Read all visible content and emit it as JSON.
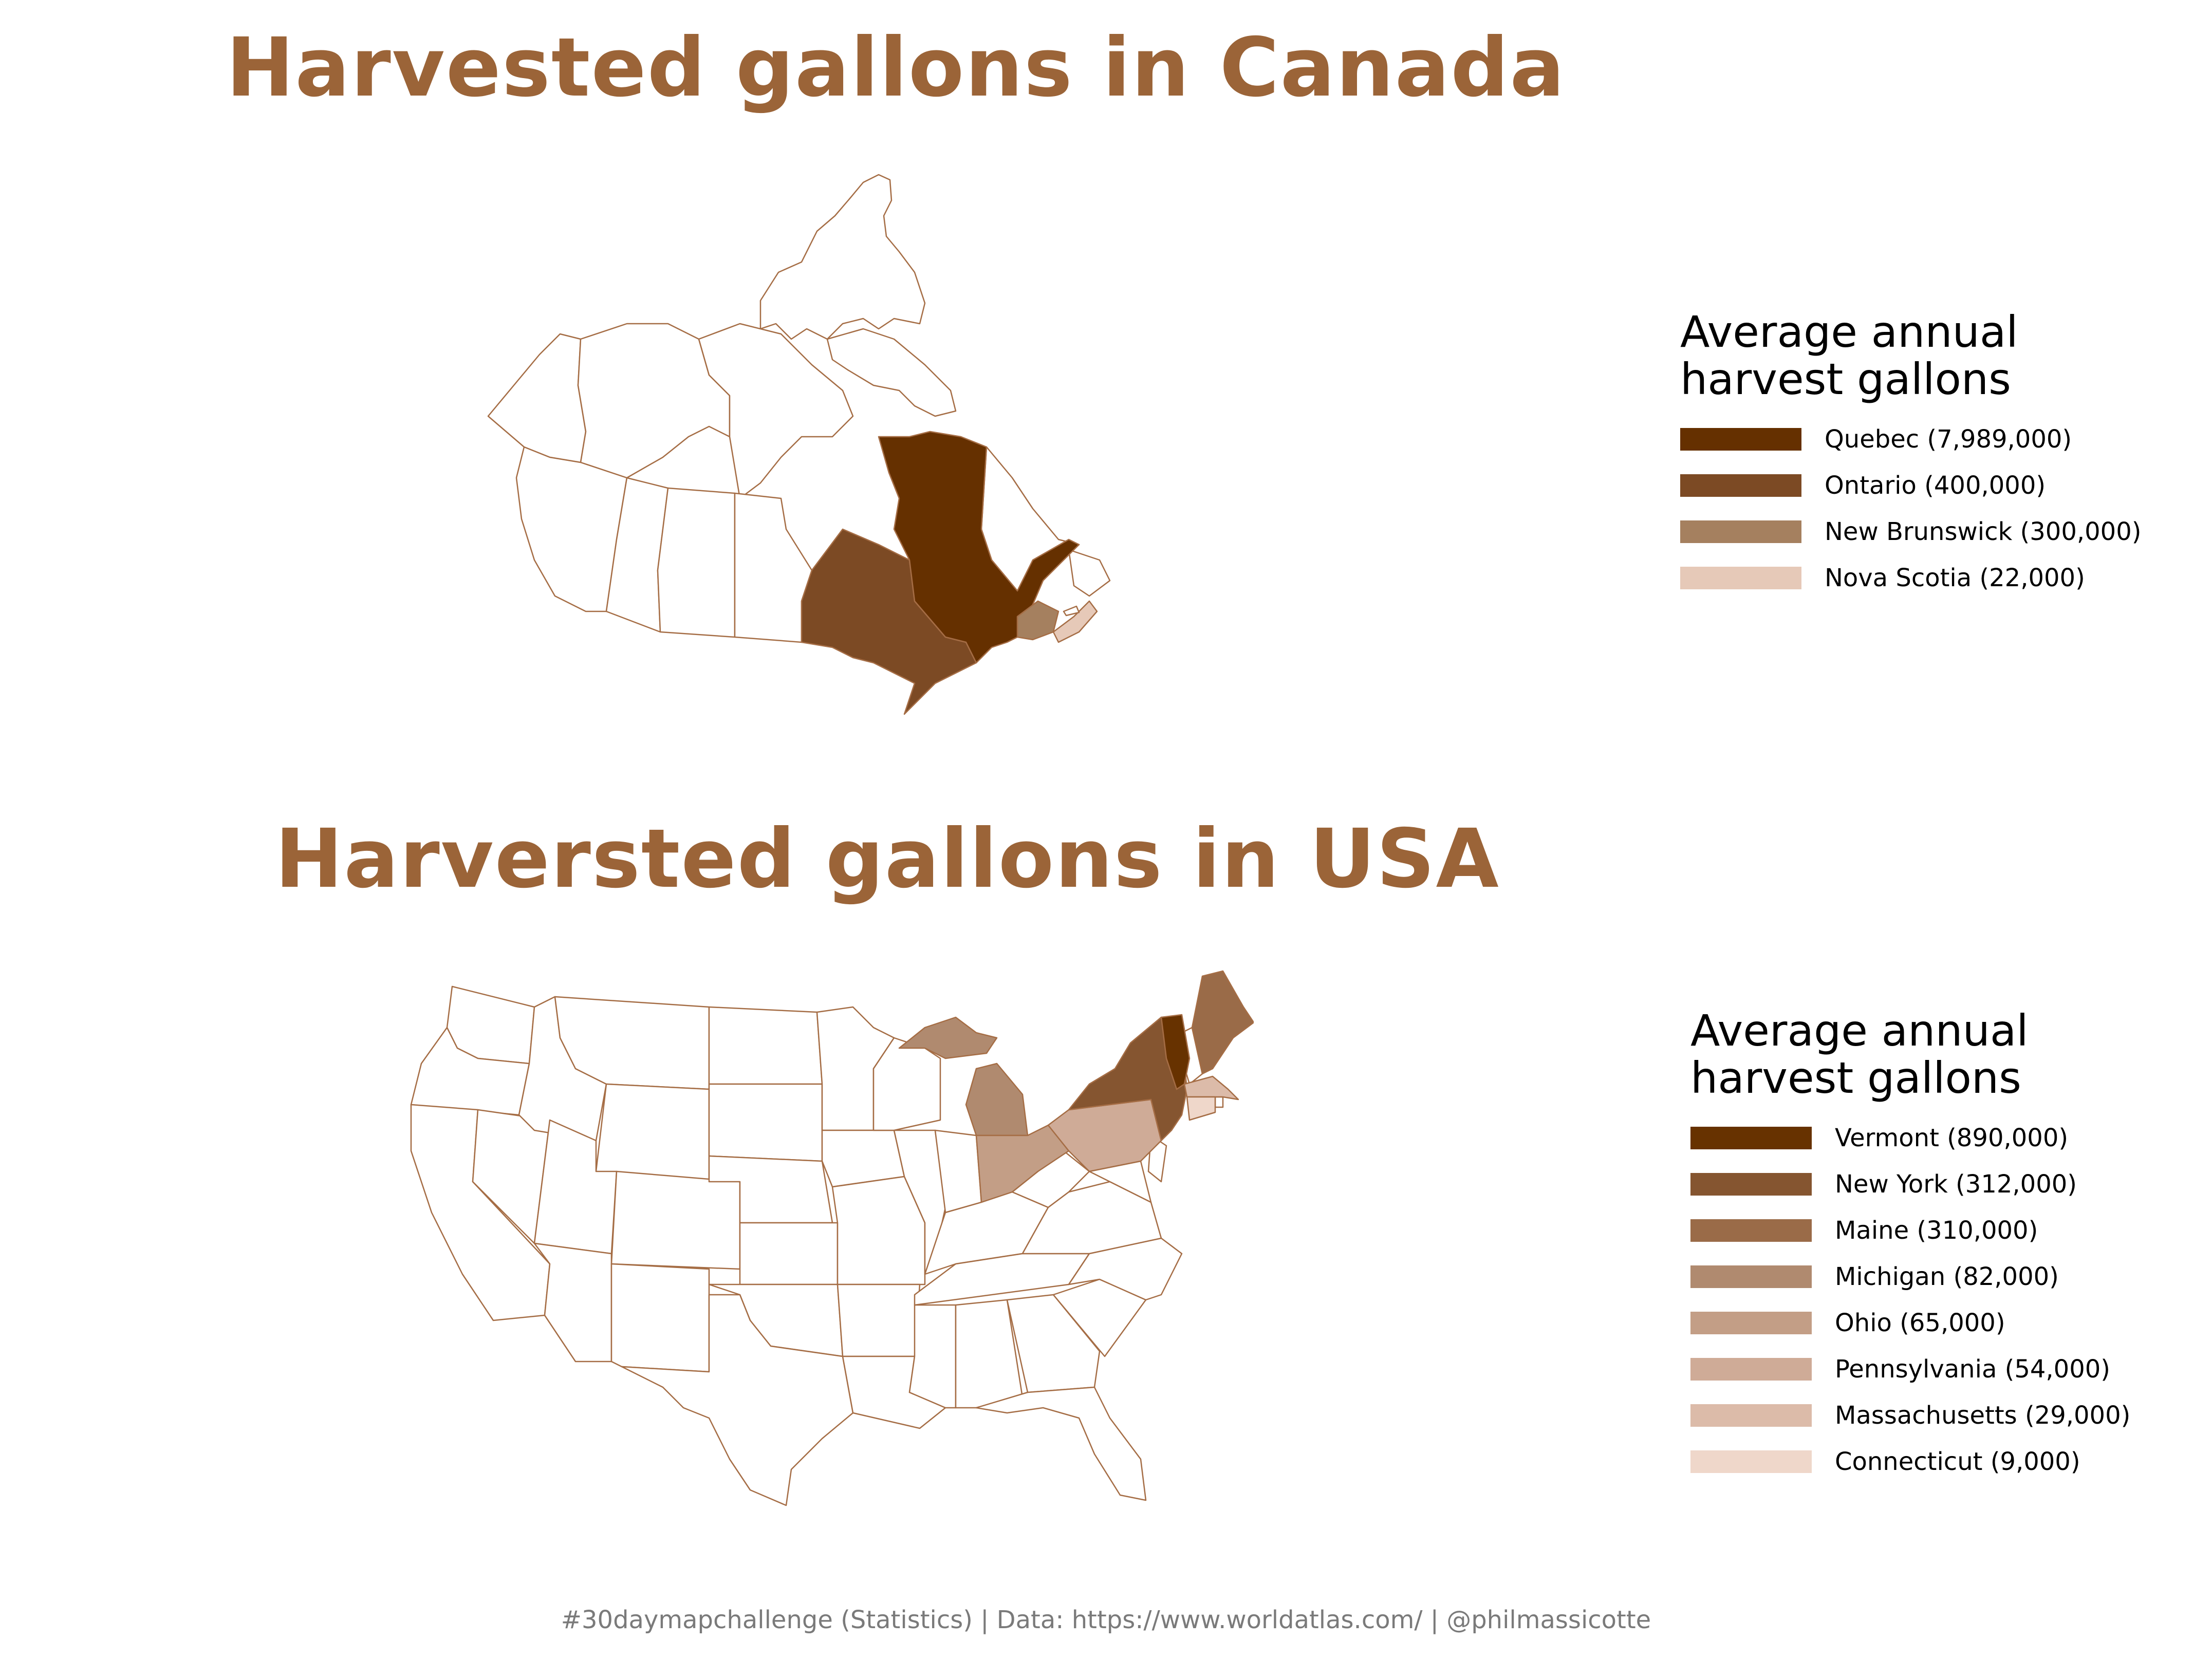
{
  "colors": {
    "title": "#9b6438",
    "outline": "#a56d45",
    "empty": "#ffffff"
  },
  "canada": {
    "title": "Harvested gallons in Canada",
    "legend": {
      "title_line1": "Average annual",
      "title_line2": "harvest gallons",
      "items": [
        {
          "label": "Quebec (7,989,000)",
          "color": "#653000"
        },
        {
          "label": "Ontario (400,000)",
          "color": "#7c4a24"
        },
        {
          "label": "New Brunswick (300,000)",
          "color": "#a5805f"
        },
        {
          "label": "Nova Scotia (22,000)",
          "color": "#e6c9b8"
        }
      ]
    }
  },
  "usa": {
    "title": "Harversted gallons in USA",
    "legend": {
      "title_line1": "Average annual",
      "title_line2": "harvest gallons",
      "items": [
        {
          "label": "Vermont (890,000)",
          "color": "#673200"
        },
        {
          "label": "New York (312,000)",
          "color": "#855530"
        },
        {
          "label": "Maine (310,000)",
          "color": "#9a6b48"
        },
        {
          "label": "Michigan (82,000)",
          "color": "#b08a6f"
        },
        {
          "label": "Ohio (65,000)",
          "color": "#c39e86"
        },
        {
          "label": "Pennsylvania (54,000)",
          "color": "#cfab97"
        },
        {
          "label": "Massachusetts (29,000)",
          "color": "#dcbba9"
        },
        {
          "label": "Connecticut (9,000)",
          "color": "#efd7ca"
        }
      ]
    }
  },
  "caption": "#30daymapchallenge (Statistics) | Data: https://www.worldatlas.com/ | @philmassicotte"
}
